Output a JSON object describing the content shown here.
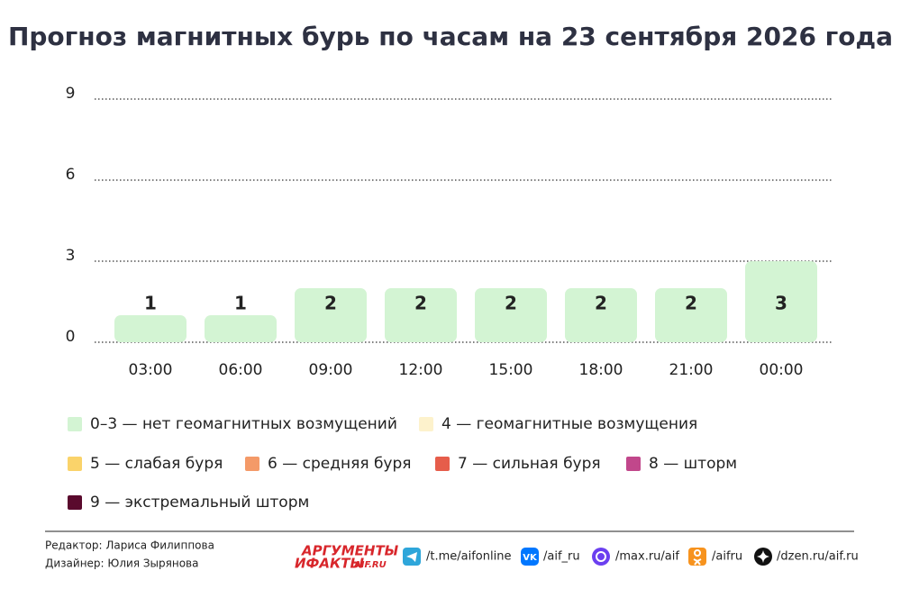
{
  "chart_data": {
    "type": "bar",
    "title": "Прогноз магнитных бурь по часам на 23 сентября 2026 года",
    "categories": [
      "03:00",
      "06:00",
      "09:00",
      "12:00",
      "15:00",
      "18:00",
      "21:00",
      "00:00"
    ],
    "values": [
      1,
      1,
      2,
      2,
      2,
      2,
      2,
      3
    ],
    "color": "#d3f4d3",
    "ylim": [
      0,
      9
    ],
    "yticks": [
      0,
      3,
      6,
      9
    ],
    "grid": true,
    "legend": [
      {
        "label": "0–3 — нет геомагнитных возмущений",
        "color": "#d3f4d3"
      },
      {
        "label": "4 — геомагнитные возмущения",
        "color": "#fdf2cc"
      },
      {
        "label": "5 — слабая буря",
        "color": "#fad36a"
      },
      {
        "label": "6 — средняя буря",
        "color": "#f49a68"
      },
      {
        "label": "7 — сильная буря",
        "color": "#e65d4b"
      },
      {
        "label": "8 — шторм",
        "color": "#c1478b"
      },
      {
        "label": "9 — экстремальный шторм",
        "color": "#5a0a2d"
      }
    ]
  },
  "footer": {
    "editor": "Редактор: Лариса Филиппова",
    "designer": "Дизайнер: Юлия Зырянова",
    "logo_top": "АРГУМЕНТЫ",
    "logo_bottom": "ИФАКТЫ",
    "logo_site": "AIF.RU",
    "links": [
      "/t.me/aifonline",
      "/aif_ru",
      "/max.ru/aif",
      "/aifru",
      "/dzen.ru/aif.ru"
    ]
  }
}
